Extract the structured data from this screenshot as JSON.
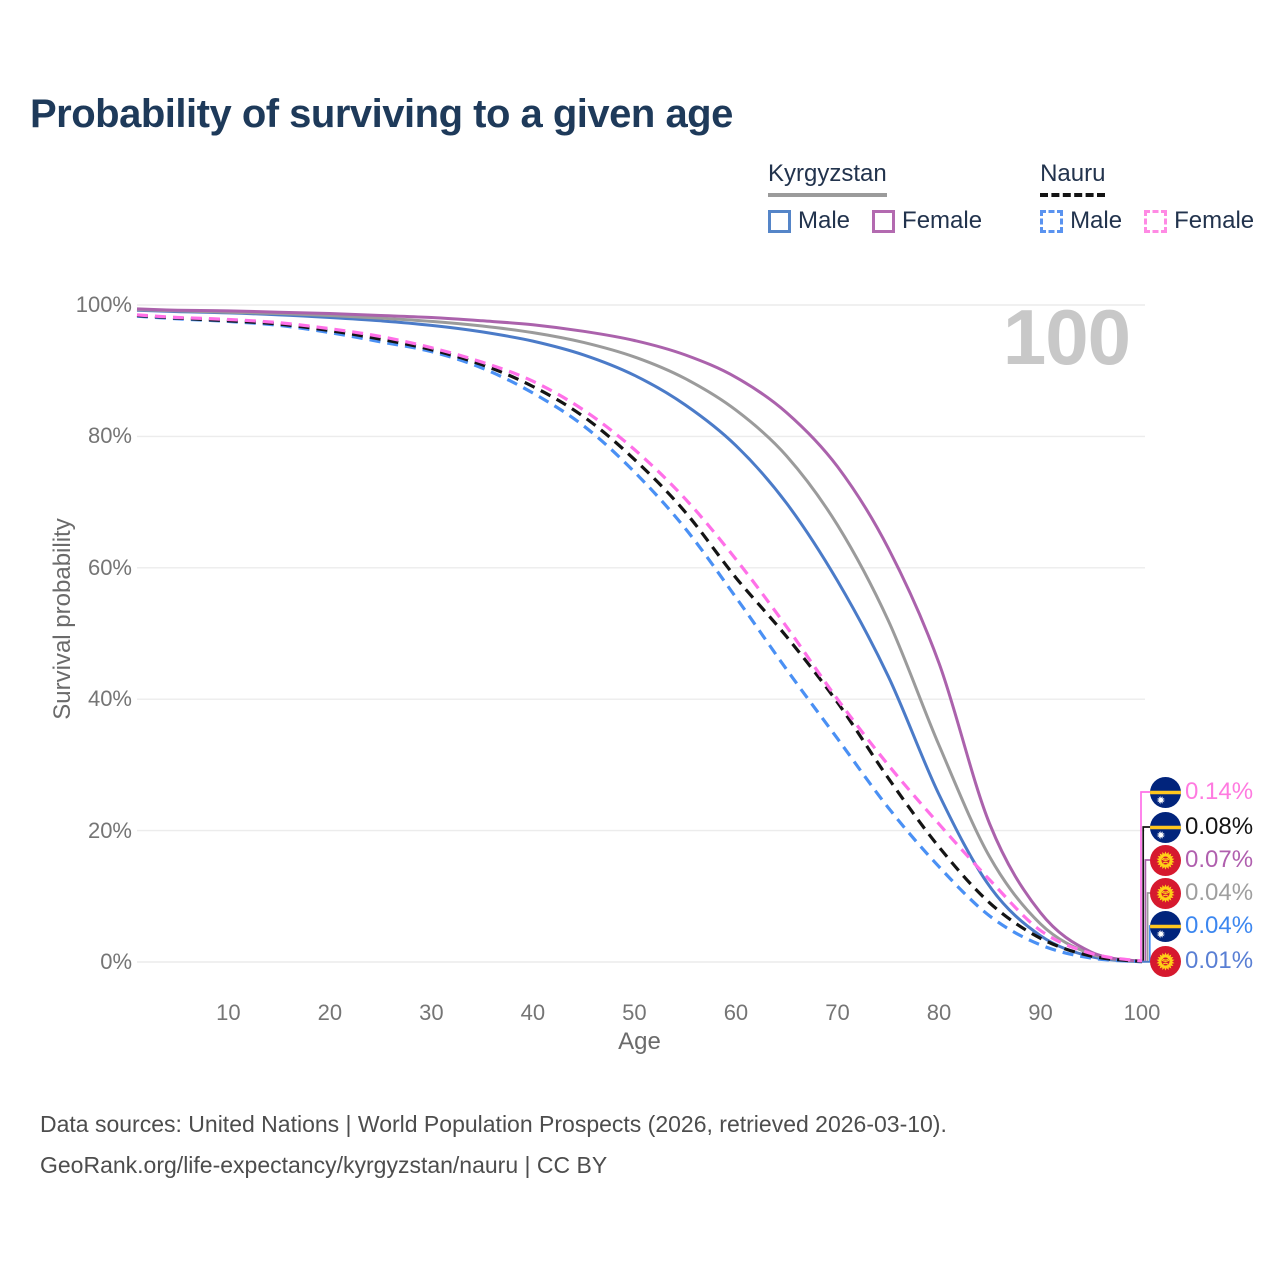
{
  "title": "Probability of surviving to a given age",
  "watermark": "100",
  "legend": {
    "groups": [
      {
        "country": "Kyrgyzstan",
        "underline_style": "solid",
        "underline_color": "#9b9b9b",
        "items": [
          {
            "label": "Male",
            "swatch_color": "#5585c8",
            "swatch_dashed": false
          },
          {
            "label": "Female",
            "swatch_color": "#b36ab0",
            "swatch_dashed": false
          }
        ]
      },
      {
        "country": "Nauru",
        "underline_style": "dashed",
        "underline_color": "#141414",
        "items": [
          {
            "label": "Male",
            "swatch_color": "#5a93f0",
            "swatch_dashed": true
          },
          {
            "label": "Female",
            "swatch_color": "#ff8ae4",
            "swatch_dashed": true
          }
        ]
      }
    ]
  },
  "chart_data": {
    "type": "line",
    "title": "Probability of surviving to a given age",
    "xlabel": "Age",
    "ylabel": "Survival probability",
    "xlim": [
      1,
      100
    ],
    "ylim": [
      0,
      100
    ],
    "x_ticks": [
      10,
      20,
      30,
      40,
      50,
      60,
      70,
      80,
      90,
      100
    ],
    "y_tick_labels": [
      "0%",
      "20%",
      "40%",
      "60%",
      "80%",
      "100%"
    ],
    "grid": "horizontal",
    "legend_position": "top-right",
    "ages": [
      1,
      5,
      10,
      15,
      20,
      25,
      30,
      35,
      40,
      45,
      50,
      55,
      60,
      65,
      70,
      75,
      80,
      85,
      90,
      95,
      100
    ],
    "series": [
      {
        "name": "Kyrgyzstan Male",
        "country": "Kyrgyzstan",
        "sex": "Male",
        "color": "#4b7bc8",
        "dashed": false,
        "values": [
          99.2,
          99.0,
          98.8,
          98.5,
          98.1,
          97.6,
          96.9,
          95.9,
          94.5,
          92.4,
          89.3,
          84.8,
          78.6,
          69.8,
          58.0,
          43.5,
          25.5,
          11.5,
          4.0,
          0.8,
          0.01
        ]
      },
      {
        "name": "Kyrgyzstan",
        "country": "Kyrgyzstan",
        "sex": "Both",
        "color": "#9b9b9b",
        "dashed": false,
        "values": [
          99.3,
          99.1,
          98.9,
          98.7,
          98.4,
          98.0,
          97.5,
          96.8,
          95.8,
          94.3,
          92.1,
          88.8,
          84.0,
          77.0,
          66.5,
          52.0,
          33.0,
          16.0,
          5.8,
          1.2,
          0.04
        ]
      },
      {
        "name": "Kyrgyzstan Female",
        "country": "Kyrgyzstan",
        "sex": "Female",
        "color": "#ab62ac",
        "dashed": false,
        "values": [
          99.4,
          99.2,
          99.1,
          98.9,
          98.7,
          98.4,
          98.1,
          97.6,
          97.0,
          96.0,
          94.6,
          92.4,
          89.0,
          83.6,
          75.4,
          63.0,
          45.5,
          21.0,
          7.5,
          1.5,
          0.07
        ]
      },
      {
        "name": "Nauru Male",
        "country": "Nauru",
        "sex": "Male",
        "color": "#4a90f4",
        "dashed": true,
        "values": [
          98.3,
          97.9,
          97.5,
          96.9,
          95.8,
          94.4,
          92.9,
          90.4,
          86.6,
          81.6,
          74.6,
          66.0,
          55.5,
          44.5,
          34.0,
          23.5,
          14.5,
          7.0,
          2.6,
          0.6,
          0.04
        ]
      },
      {
        "name": "Nauru",
        "country": "Nauru",
        "sex": "Both",
        "color": "#141414",
        "dashed": true,
        "values": [
          98.4,
          98.0,
          97.6,
          97.1,
          96.1,
          94.8,
          93.2,
          90.9,
          87.6,
          83.0,
          76.5,
          68.5,
          58.5,
          49.5,
          39.5,
          28.0,
          17.5,
          9.0,
          3.6,
          0.9,
          0.08
        ]
      },
      {
        "name": "Nauru Female",
        "country": "Nauru",
        "sex": "Female",
        "color": "#ff70e8",
        "dashed": true,
        "values": [
          98.5,
          98.1,
          97.8,
          97.3,
          96.4,
          95.2,
          93.5,
          91.3,
          88.4,
          84.0,
          78.0,
          70.5,
          61.3,
          51.0,
          40.0,
          30.0,
          21.0,
          12.5,
          4.8,
          1.3,
          0.14
        ]
      }
    ],
    "end_labels": [
      {
        "text": "0.14%",
        "color": "#ff7ae0",
        "flag": "nauru",
        "series": "Nauru Female"
      },
      {
        "text": "0.08%",
        "color": "#141414",
        "flag": "nauru",
        "series": "Nauru"
      },
      {
        "text": "0.07%",
        "color": "#b05fae",
        "flag": "kyrgyzstan",
        "series": "Kyrgyzstan Female"
      },
      {
        "text": "0.04%",
        "color": "#9f9f9f",
        "flag": "kyrgyzstan",
        "series": "Kyrgyzstan"
      },
      {
        "text": "0.04%",
        "color": "#3c87f0",
        "flag": "nauru",
        "series": "Nauru Male"
      },
      {
        "text": "0.01%",
        "color": "#597fd4",
        "flag": "kyrgyzstan",
        "series": "Kyrgyzstan Male"
      }
    ]
  },
  "footer": {
    "line1": "Data sources: United Nations | World Population Prospects (2026, retrieved 2026-03-10).",
    "line2": "GeoRank.org/life-expectancy/kyrgyzstan/nauru | CC BY"
  }
}
